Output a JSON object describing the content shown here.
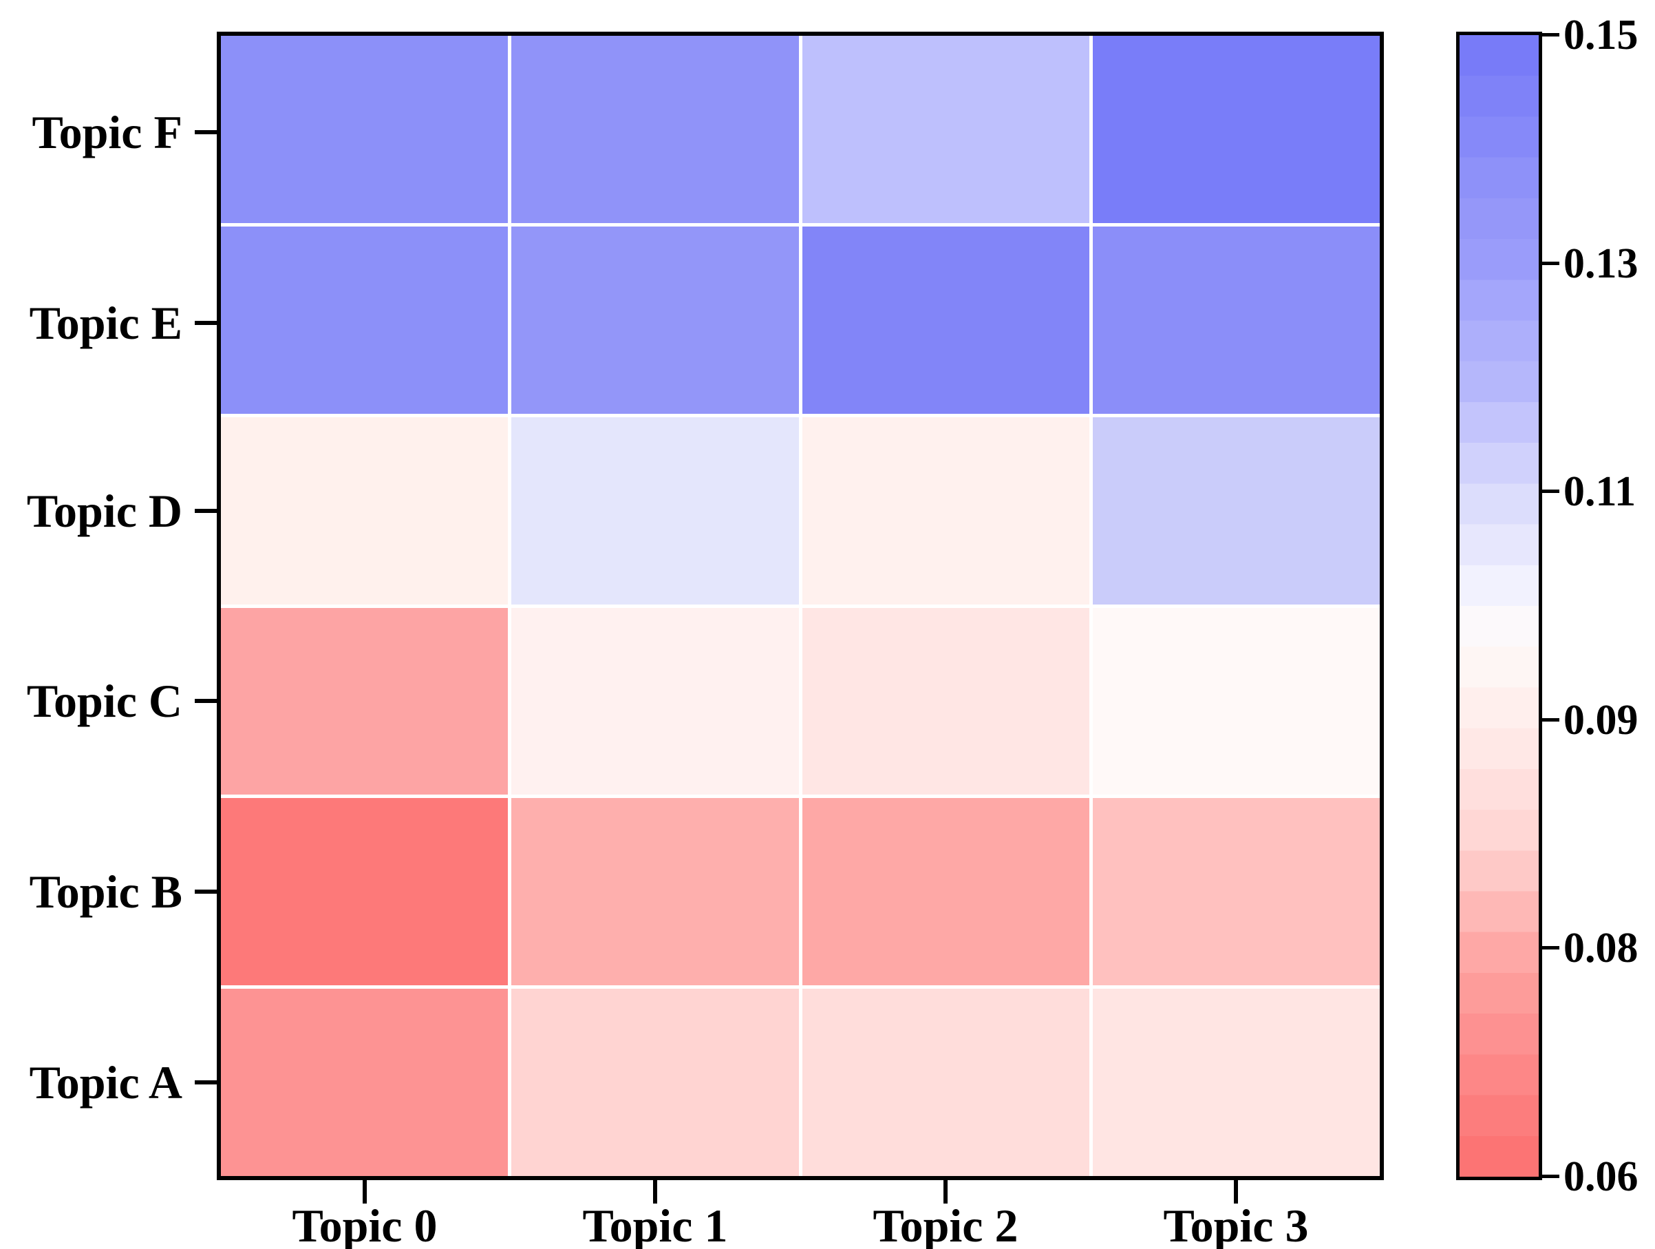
{
  "chart_data": {
    "type": "heatmap",
    "x_categories": [
      "Topic 0",
      "Topic 1",
      "Topic 2",
      "Topic 3"
    ],
    "y_categories_top_to_bottom": [
      "Topic F",
      "Topic E",
      "Topic D",
      "Topic C",
      "Topic B",
      "Topic A"
    ],
    "rows": [
      {
        "label": "Topic F",
        "values": [
          0.138,
          0.137,
          0.12,
          0.148
        ],
        "colors": [
          "#8C90F9",
          "#9093F9",
          "#BEC0FD",
          "#797DF9"
        ]
      },
      {
        "label": "Topic E",
        "values": [
          0.138,
          0.136,
          0.143,
          0.138
        ],
        "colors": [
          "#8C90F9",
          "#9396F9",
          "#8285F8",
          "#8B8EF9"
        ]
      },
      {
        "label": "Topic D",
        "values": [
          0.095,
          0.108,
          0.095,
          0.117
        ],
        "colors": [
          "#FFF1ED",
          "#E4E6FC",
          "#FFF1EE",
          "#CACCFA"
        ]
      },
      {
        "label": "Topic C",
        "values": [
          0.08,
          0.093,
          0.088,
          0.098
        ],
        "colors": [
          "#FDA4A4",
          "#FFF1F0",
          "#FFE6E4",
          "#FFF9F8"
        ]
      },
      {
        "label": "Topic B",
        "values": [
          0.064,
          0.081,
          0.08,
          0.083
        ],
        "colors": [
          "#FD7979",
          "#FEAFAD",
          "#FEA8A6",
          "#FFC1BF"
        ]
      },
      {
        "label": "Topic A",
        "values": [
          0.074,
          0.085,
          0.086,
          0.088
        ],
        "colors": [
          "#FD9393",
          "#FFD4D2",
          "#FFDDDB",
          "#FFE5E3"
        ]
      }
    ],
    "grid_line_color": "#ffffff",
    "frame_color": "#000000",
    "background": "#ffffff",
    "colorbar": {
      "min": 0.06,
      "max": 0.15,
      "tick_labels_top_to_bottom": [
        "0.15",
        "0.13",
        "0.11",
        "0.09",
        "0.08",
        "0.06"
      ],
      "bands": 28,
      "gradient_stops_top_to_bottom": [
        {
          "pos": 0.0,
          "color": "#7477F8"
        },
        {
          "pos": 0.05,
          "color": "#7E81F8"
        },
        {
          "pos": 0.1,
          "color": "#888BF9"
        },
        {
          "pos": 0.15,
          "color": "#9396F9"
        },
        {
          "pos": 0.2,
          "color": "#9A9CFA"
        },
        {
          "pos": 0.25,
          "color": "#A9ABFB"
        },
        {
          "pos": 0.3,
          "color": "#B4B6FB"
        },
        {
          "pos": 0.35,
          "color": "#C7C8FC"
        },
        {
          "pos": 0.4,
          "color": "#D9DAFC"
        },
        {
          "pos": 0.45,
          "color": "#E8E8FD"
        },
        {
          "pos": 0.5,
          "color": "#F8F7FE"
        },
        {
          "pos": 0.53,
          "color": "#FEFAF9"
        },
        {
          "pos": 0.6,
          "color": "#FFEDEB"
        },
        {
          "pos": 0.65,
          "color": "#FFE2E0"
        },
        {
          "pos": 0.7,
          "color": "#FFD6D4"
        },
        {
          "pos": 0.75,
          "color": "#FEC1BF"
        },
        {
          "pos": 0.8,
          "color": "#FEA9A7"
        },
        {
          "pos": 0.85,
          "color": "#FD9897"
        },
        {
          "pos": 0.9,
          "color": "#FD8A8A"
        },
        {
          "pos": 0.95,
          "color": "#FC7C7C"
        },
        {
          "pos": 1.0,
          "color": "#FC6F6F"
        }
      ]
    }
  }
}
